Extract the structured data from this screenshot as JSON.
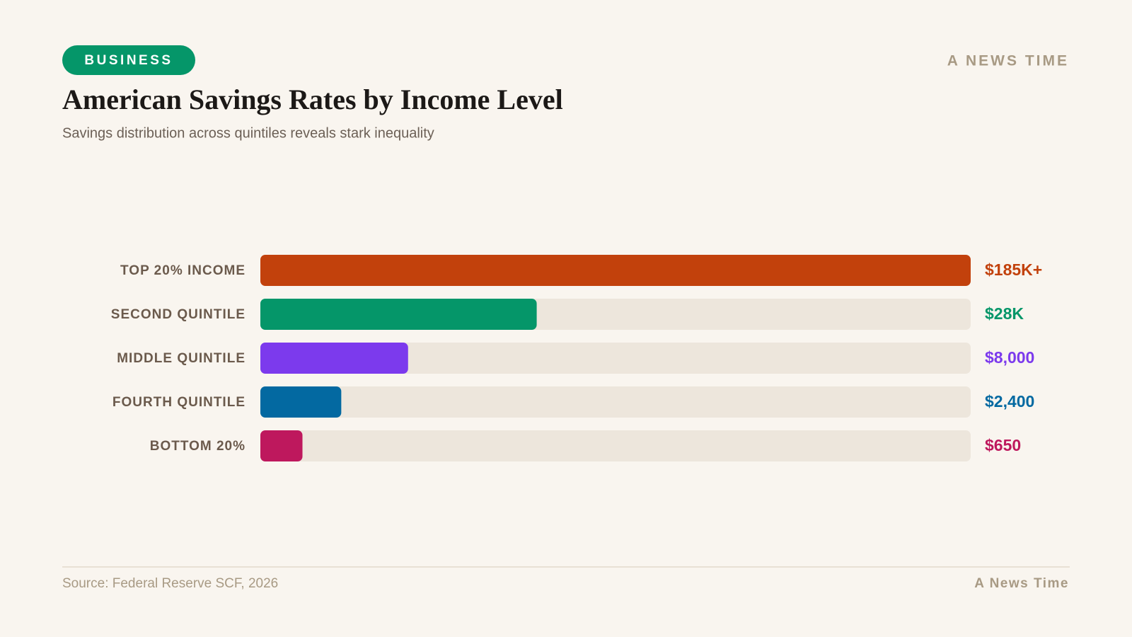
{
  "page": {
    "tag": "BUSINESS",
    "brand": "A NEWS TIME",
    "source": "Source: Federal Reserve SCF, 2026",
    "footer_brand": "A News Time"
  },
  "chart_data": {
    "type": "bar",
    "orientation": "horizontal",
    "scale": "sqrt",
    "title": "American Savings Rates by Income Level",
    "subtitle": "Savings distribution across quintiles reveals stark inequality",
    "categories": [
      "TOP 20% INCOME",
      "SECOND QUINTILE",
      "MIDDLE QUINTILE",
      "FOURTH QUINTILE",
      "BOTTOM 20%"
    ],
    "values": [
      185000,
      28000,
      8000,
      2400,
      650
    ],
    "value_labels": [
      "$185K+",
      "$28K",
      "$8,000",
      "$2,400",
      "$650"
    ],
    "colors": [
      "#c2410c",
      "#059669",
      "#7c3aed",
      "#0369a1",
      "#be185d"
    ],
    "track_color": "#ede6dc",
    "xlim": [
      0,
      185000
    ]
  }
}
